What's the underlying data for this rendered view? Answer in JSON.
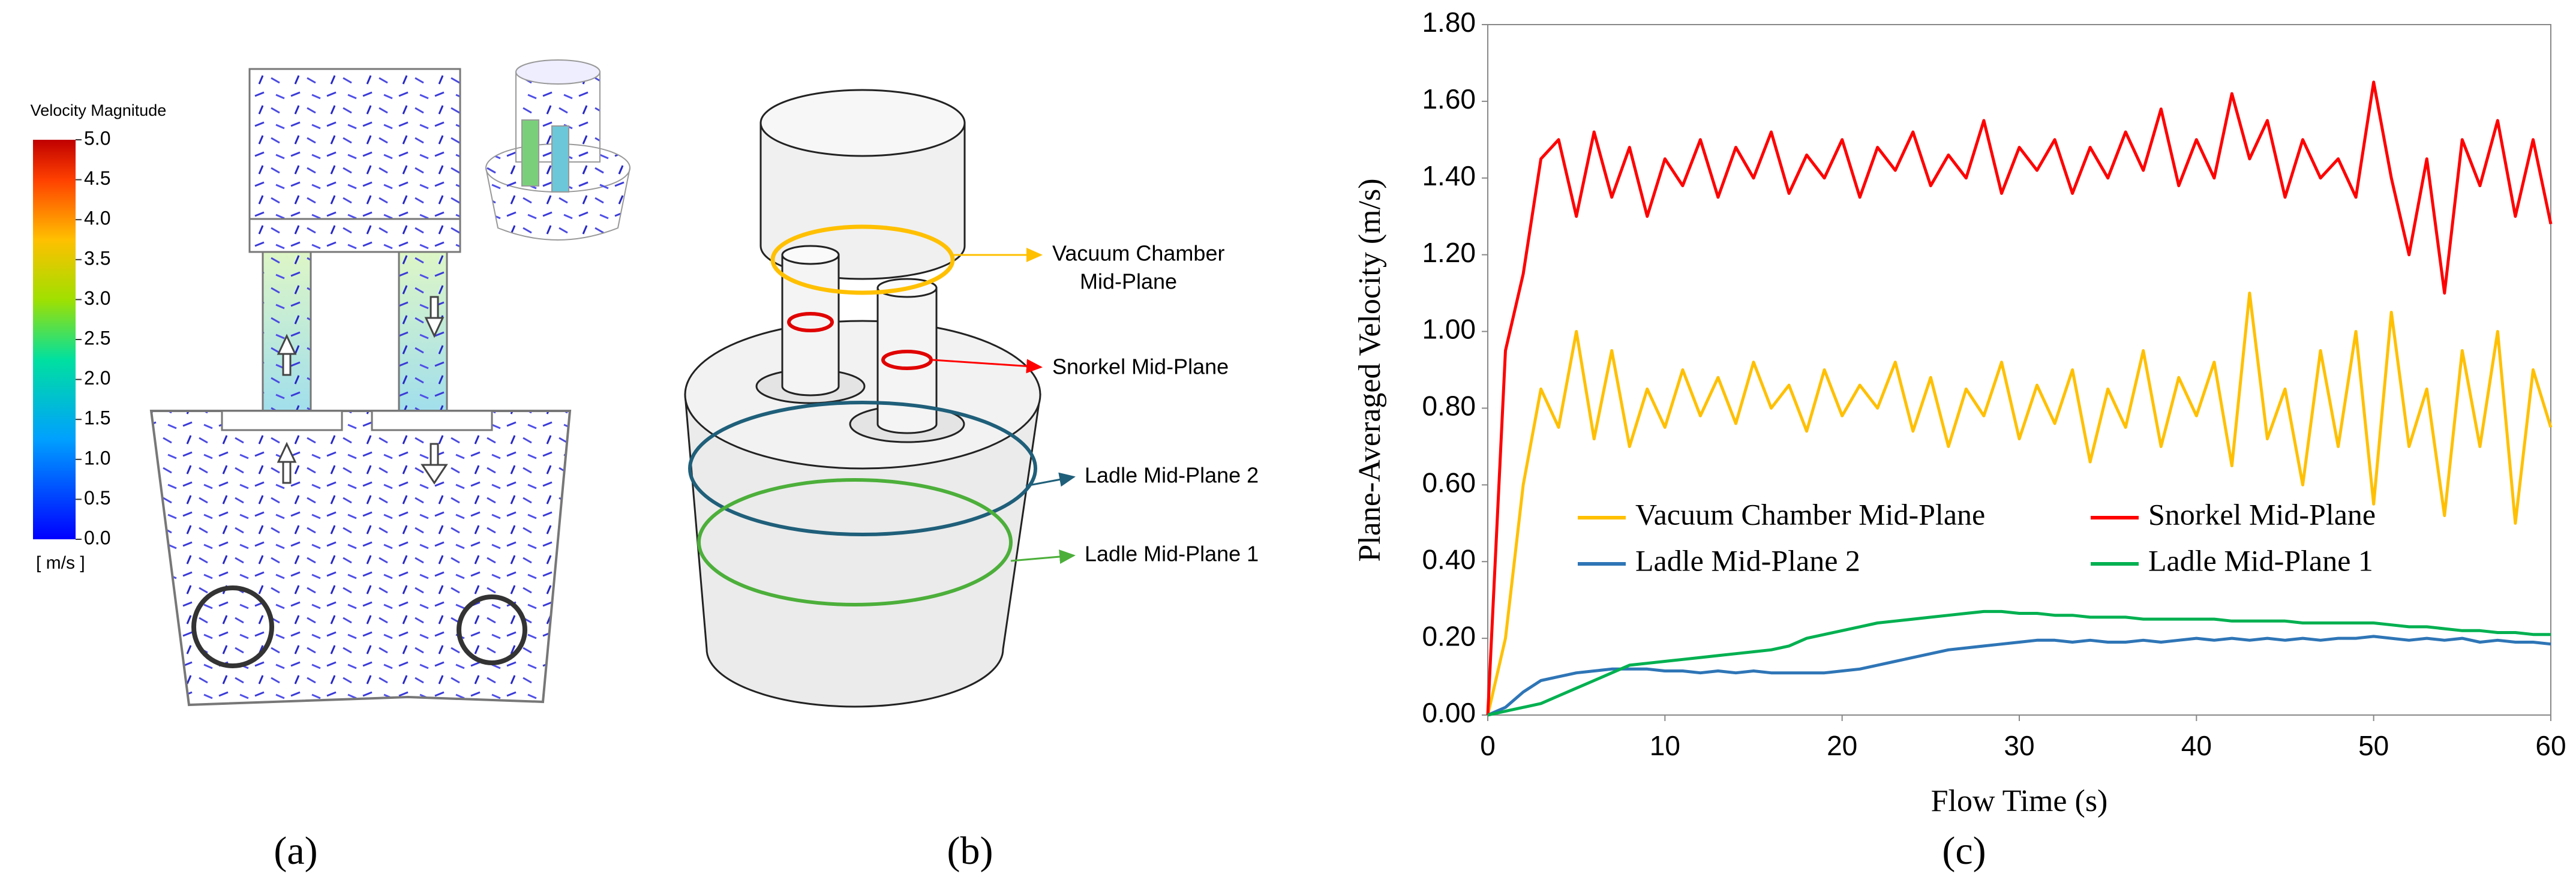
{
  "panel_a": {
    "label": "(a)",
    "colorbar_title": "Velocity Magnitude",
    "colorbar_unit": "[ m/s ]",
    "clim": [
      0,
      5
    ],
    "ticks": [
      {
        "value": 0,
        "label": "0.0"
      },
      {
        "value": 0.5,
        "label": "0.5"
      },
      {
        "value": 1,
        "label": "1.0"
      },
      {
        "value": 1.5,
        "label": "1.5"
      },
      {
        "value": 2,
        "label": "2.0"
      },
      {
        "value": 2.5,
        "label": "2.5"
      },
      {
        "value": 3,
        "label": "3.0"
      },
      {
        "value": 3.5,
        "label": "3.5"
      },
      {
        "value": 4,
        "label": "4.0"
      },
      {
        "value": 4.5,
        "label": "4.5"
      },
      {
        "value": 5,
        "label": "5.0"
      }
    ]
  },
  "panel_b": {
    "label": "(b)",
    "vacuum_label": [
      "Vacuum Chamber",
      "Mid-Plane"
    ],
    "snorkel_label": "Snorkel Mid-Plane",
    "ladle2_label": "Ladle Mid-Plane 2",
    "ladle1_label": "Ladle Mid-Plane 1"
  },
  "chart_data": {
    "type": "line",
    "label": "(c)",
    "x_label": "Flow Time (s)",
    "y_label": "Plane-Averaged Velocity (m/s)",
    "xlim": [
      0,
      60
    ],
    "ylim": [
      0,
      1.8
    ],
    "xticks": [
      0,
      10,
      20,
      30,
      40,
      50,
      60
    ],
    "yticks": [
      {
        "value": 0,
        "label": "0.00"
      },
      {
        "value": 0.2,
        "label": "0.20"
      },
      {
        "value": 0.4,
        "label": "0.40"
      },
      {
        "value": 0.6,
        "label": "0.60"
      },
      {
        "value": 0.8,
        "label": "0.80"
      },
      {
        "value": 1,
        "label": "1.00"
      },
      {
        "value": 1.2,
        "label": "1.20"
      },
      {
        "value": 1.4,
        "label": "1.40"
      },
      {
        "value": 1.6,
        "label": "1.60"
      },
      {
        "value": 1.8,
        "label": "1.80"
      }
    ],
    "legend": "center",
    "x": [
      0,
      1,
      2,
      3,
      4,
      5,
      6,
      7,
      8,
      9,
      10,
      11,
      12,
      13,
      14,
      15,
      16,
      17,
      18,
      19,
      20,
      21,
      22,
      23,
      24,
      25,
      26,
      27,
      28,
      29,
      30,
      31,
      32,
      33,
      34,
      35,
      36,
      37,
      38,
      39,
      40,
      41,
      42,
      43,
      44,
      45,
      46,
      47,
      48,
      49,
      50,
      51,
      52,
      53,
      54,
      55,
      56,
      57,
      58,
      59,
      60
    ],
    "series": [
      {
        "name": "Vacuum Chamber Mid-Plane",
        "color": "#ffc000",
        "values": [
          0,
          0.2,
          0.6,
          0.85,
          0.75,
          1.0,
          0.72,
          0.95,
          0.7,
          0.85,
          0.75,
          0.9,
          0.78,
          0.88,
          0.76,
          0.92,
          0.8,
          0.86,
          0.74,
          0.9,
          0.78,
          0.86,
          0.8,
          0.92,
          0.74,
          0.88,
          0.7,
          0.85,
          0.78,
          0.92,
          0.72,
          0.86,
          0.76,
          0.9,
          0.66,
          0.85,
          0.75,
          0.95,
          0.7,
          0.88,
          0.78,
          0.92,
          0.65,
          1.1,
          0.72,
          0.85,
          0.6,
          0.95,
          0.7,
          1.0,
          0.55,
          1.05,
          0.7,
          0.85,
          0.52,
          0.95,
          0.7,
          1.0,
          0.5,
          0.9,
          0.75
        ]
      },
      {
        "name": "Snorkel Mid-Plane",
        "color": "#ff0000",
        "values": [
          0,
          0.95,
          1.15,
          1.45,
          1.5,
          1.3,
          1.52,
          1.35,
          1.48,
          1.3,
          1.45,
          1.38,
          1.5,
          1.35,
          1.48,
          1.4,
          1.52,
          1.36,
          1.46,
          1.4,
          1.5,
          1.35,
          1.48,
          1.42,
          1.52,
          1.38,
          1.46,
          1.4,
          1.55,
          1.36,
          1.48,
          1.42,
          1.5,
          1.36,
          1.48,
          1.4,
          1.52,
          1.42,
          1.58,
          1.38,
          1.5,
          1.4,
          1.62,
          1.45,
          1.55,
          1.35,
          1.5,
          1.4,
          1.45,
          1.35,
          1.65,
          1.4,
          1.2,
          1.45,
          1.1,
          1.5,
          1.38,
          1.55,
          1.3,
          1.5,
          1.28
        ]
      },
      {
        "name": "Ladle Mid-Plane 2",
        "color": "#2e75b6",
        "values": [
          0,
          0.02,
          0.06,
          0.09,
          0.1,
          0.11,
          0.115,
          0.12,
          0.12,
          0.12,
          0.115,
          0.115,
          0.11,
          0.115,
          0.11,
          0.115,
          0.11,
          0.11,
          0.11,
          0.11,
          0.115,
          0.12,
          0.13,
          0.14,
          0.15,
          0.16,
          0.17,
          0.175,
          0.18,
          0.185,
          0.19,
          0.195,
          0.195,
          0.19,
          0.195,
          0.19,
          0.19,
          0.195,
          0.19,
          0.195,
          0.2,
          0.195,
          0.2,
          0.195,
          0.2,
          0.195,
          0.2,
          0.195,
          0.2,
          0.2,
          0.205,
          0.2,
          0.195,
          0.2,
          0.195,
          0.2,
          0.19,
          0.195,
          0.19,
          0.19,
          0.185
        ]
      },
      {
        "name": "Ladle Mid-Plane 1",
        "color": "#00b050",
        "values": [
          0,
          0.01,
          0.02,
          0.03,
          0.05,
          0.07,
          0.09,
          0.11,
          0.13,
          0.135,
          0.14,
          0.145,
          0.15,
          0.155,
          0.16,
          0.165,
          0.17,
          0.18,
          0.2,
          0.21,
          0.22,
          0.23,
          0.24,
          0.245,
          0.25,
          0.255,
          0.26,
          0.265,
          0.27,
          0.27,
          0.265,
          0.265,
          0.26,
          0.26,
          0.255,
          0.255,
          0.255,
          0.25,
          0.25,
          0.25,
          0.25,
          0.25,
          0.245,
          0.245,
          0.245,
          0.245,
          0.24,
          0.24,
          0.24,
          0.24,
          0.24,
          0.235,
          0.23,
          0.23,
          0.225,
          0.22,
          0.22,
          0.215,
          0.215,
          0.21,
          0.21
        ]
      }
    ]
  }
}
